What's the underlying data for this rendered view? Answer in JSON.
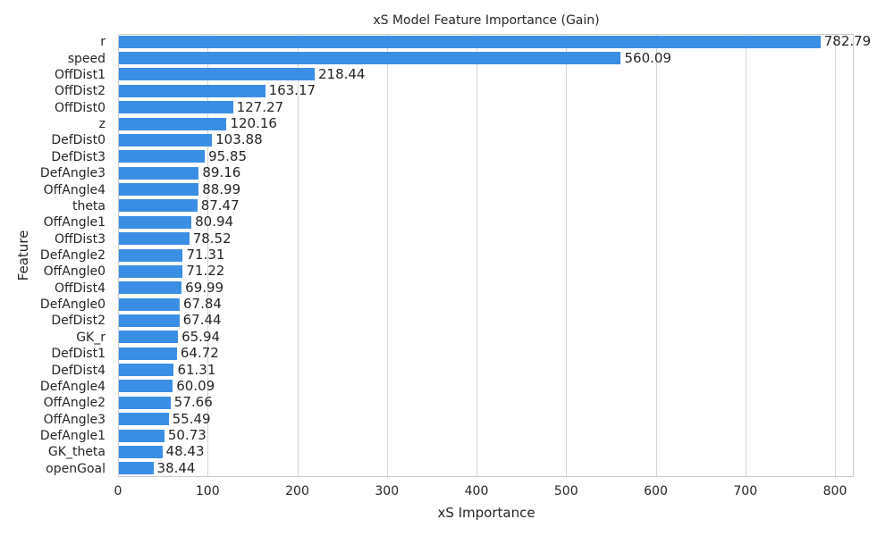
{
  "chart_data": {
    "type": "bar",
    "orientation": "horizontal",
    "title": "xS Model Feature Importance (Gain)",
    "xlabel": "xS Importance",
    "ylabel": "Feature",
    "xlim": [
      0,
      822
    ],
    "xticks": [
      0,
      100,
      200,
      300,
      400,
      500,
      600,
      700,
      800
    ],
    "grid": true,
    "bar_color": "#3a8fe5",
    "categories": [
      "r",
      "speed",
      "OffDist1",
      "OffDist2",
      "OffDist0",
      "z",
      "DefDist0",
      "DefDist3",
      "DefAngle3",
      "OffAngle4",
      "theta",
      "OffAngle1",
      "OffDist3",
      "DefAngle2",
      "OffAngle0",
      "OffDist4",
      "DefAngle0",
      "DefDist2",
      "GK_r",
      "DefDist1",
      "DefDist4",
      "DefAngle4",
      "OffAngle2",
      "OffAngle3",
      "DefAngle1",
      "GK_theta",
      "openGoal"
    ],
    "values": [
      782.79,
      560.09,
      218.44,
      163.17,
      127.27,
      120.16,
      103.88,
      95.85,
      89.16,
      88.99,
      87.47,
      80.94,
      78.52,
      71.31,
      71.22,
      69.99,
      67.84,
      67.44,
      65.94,
      64.72,
      61.31,
      60.09,
      57.66,
      55.49,
      50.73,
      48.43,
      38.44
    ],
    "labels": [
      "782.79",
      "560.09",
      "218.44",
      "163.17",
      "127.27",
      "120.16",
      "103.88",
      "95.85",
      "89.16",
      "88.99",
      "87.47",
      "80.94",
      "78.52",
      "71.31",
      "71.22",
      "69.99",
      "67.84",
      "67.44",
      "65.94",
      "64.72",
      "61.31",
      "60.09",
      "57.66",
      "55.49",
      "50.73",
      "48.43",
      "38.44"
    ]
  }
}
